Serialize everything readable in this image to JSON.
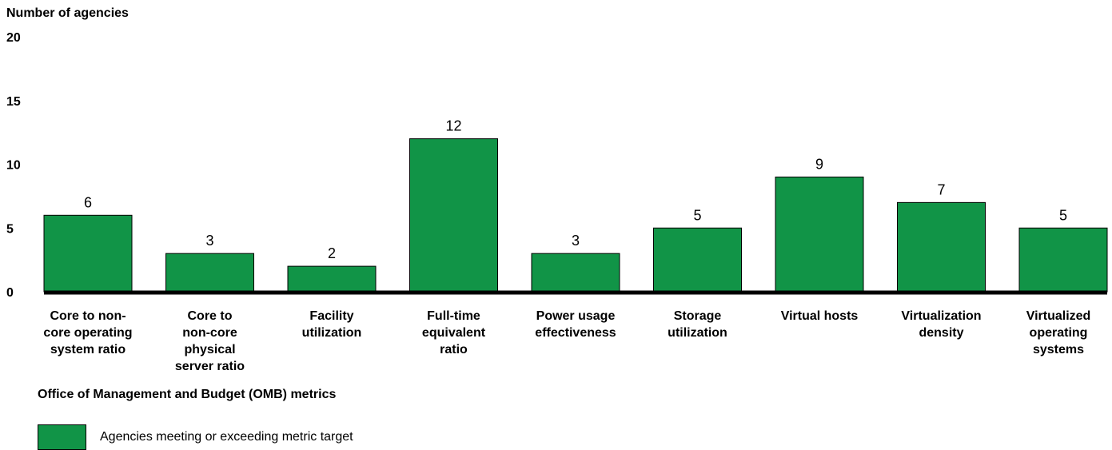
{
  "chart_data": {
    "type": "bar",
    "ylabel": "Number of agencies",
    "xlabel": "Office of Management and Budget (OMB) metrics",
    "categories": [
      "Core to non-core operating system ratio",
      "Core to non-core physical server ratio",
      "Facility utilization",
      "Full-time equivalent ratio",
      "Power usage effectiveness",
      "Storage utilization",
      "Virtual hosts",
      "Virtualization density",
      "Virtualized operating systems"
    ],
    "category_lines": [
      [
        "Core to non-",
        "core operating",
        "system ratio"
      ],
      [
        "Core to",
        "non-core",
        "physical",
        "server ratio"
      ],
      [
        "Facility",
        "utilization"
      ],
      [
        "Full-time",
        "equivalent",
        "ratio"
      ],
      [
        "Power usage",
        "effectiveness"
      ],
      [
        "Storage",
        "utilization"
      ],
      [
        "Virtual hosts"
      ],
      [
        "Virtualization",
        "density"
      ],
      [
        "Virtualized",
        "operating",
        "systems"
      ]
    ],
    "series": [
      {
        "name": "Agencies meeting or exceeding metric target",
        "values": [
          6,
          3,
          2,
          12,
          3,
          5,
          9,
          7,
          5
        ]
      }
    ],
    "yticks": [
      0,
      5,
      10,
      15,
      20
    ],
    "ylim": [
      0,
      20
    ],
    "grid": false,
    "legend_position": "bottom-left",
    "bar_color": "#119447"
  }
}
